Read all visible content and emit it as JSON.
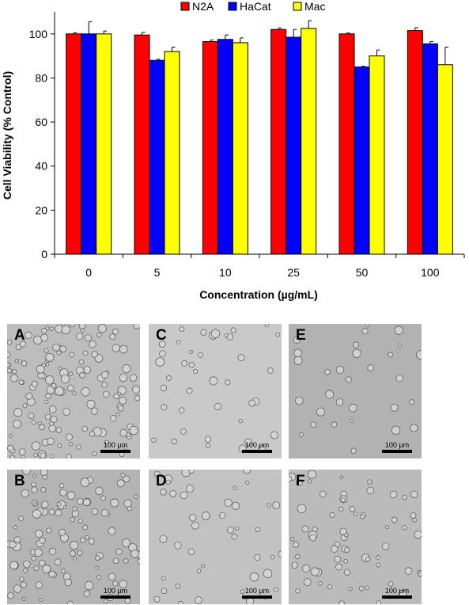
{
  "chart_data": {
    "type": "bar",
    "categories": [
      "0",
      "5",
      "10",
      "25",
      "50",
      "100"
    ],
    "series": [
      {
        "name": "N2A",
        "color": "#ff0000",
        "values": [
          100,
          99.5,
          96.5,
          102,
          100,
          101.5
        ],
        "errors": [
          0.5,
          1.2,
          0.7,
          0.7,
          0.4,
          1.3
        ]
      },
      {
        "name": "HaCat",
        "color": "#0000ff",
        "values": [
          100,
          88,
          97.5,
          98.5,
          85,
          95.5
        ],
        "errors": [
          5.5,
          0.5,
          2.0,
          3.5,
          0.3,
          1.0
        ]
      },
      {
        "name": "Mac",
        "color": "#ffff00",
        "values": [
          100,
          92,
          96,
          102.5,
          90,
          86
        ],
        "errors": [
          1.3,
          2.0,
          2.2,
          3.5,
          2.7,
          8.0
        ]
      }
    ],
    "xlabel": "Concentration (µg/mL)",
    "ylabel": "Cell Viability (% Control)",
    "ylim": [
      0,
      110
    ],
    "yticks": [
      0,
      20,
      40,
      60,
      80,
      100
    ],
    "legend_position": "top-center",
    "grid": false
  },
  "micrographs": {
    "scale_label": "100 µm",
    "panels": [
      {
        "letter": "A",
        "tone": "#bdbdbd",
        "density": 140
      },
      {
        "letter": "C",
        "tone": "#c9c9c9",
        "density": 40
      },
      {
        "letter": "E",
        "tone": "#b2b2b2",
        "density": 30
      },
      {
        "letter": "B",
        "tone": "#b4b4b4",
        "density": 110
      },
      {
        "letter": "D",
        "tone": "#c2c2c2",
        "density": 45
      },
      {
        "letter": "F",
        "tone": "#bbbbbb",
        "density": 70
      }
    ]
  }
}
